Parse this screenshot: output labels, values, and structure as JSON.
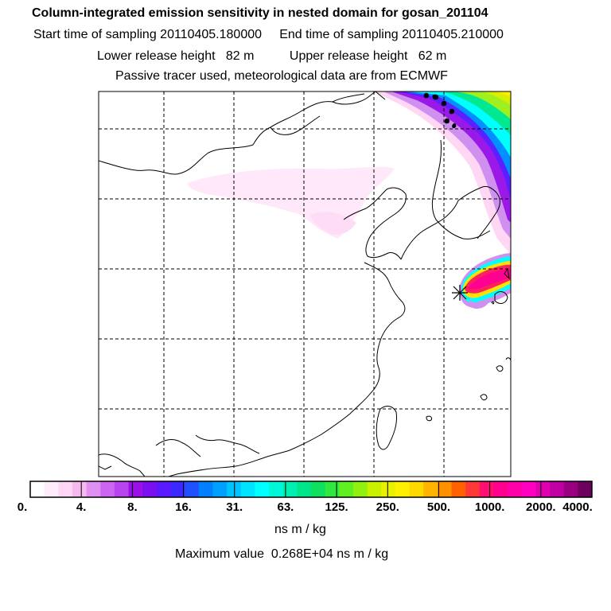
{
  "header": {
    "title": "Column-integrated emission sensitivity in nested domain for gosan_201104",
    "sampling_line": "Start time of sampling 20110405.180000     End time of sampling 20110405.210000",
    "height_line": "Lower release height   82 m          Upper release height   62 m",
    "tracer_line": "Passive tracer used, meteorological data are from ECMWF"
  },
  "map": {
    "release_marker": "asterisk-marker",
    "plume_colors": [
      "#ffd6f4",
      "#d090f0",
      "#9000e0",
      "#5020ff",
      "#0080ff",
      "#00ffff",
      "#00e890",
      "#b0f020",
      "#ffe000",
      "#ff4040",
      "#ff0090"
    ]
  },
  "colorbar": {
    "colors": [
      "#ffffff",
      "#ffecfb",
      "#ffd6f4",
      "#f6b8ee",
      "#e090f0",
      "#cc66f0",
      "#b844f0",
      "#9a10e8",
      "#7a10f0",
      "#5a18ff",
      "#3a28ff",
      "#2050ff",
      "#0080ff",
      "#00a0ff",
      "#00c4ff",
      "#00e4ff",
      "#00ffff",
      "#00f6d8",
      "#00eeb0",
      "#00e48a",
      "#10e060",
      "#30e840",
      "#60f020",
      "#90f010",
      "#c8f000",
      "#e8f000",
      "#fff000",
      "#ffd800",
      "#ffb400",
      "#ff9000",
      "#ff6000",
      "#ff3838",
      "#ff1070",
      "#ff0090",
      "#ff00a8",
      "#ff00c0",
      "#e000b0",
      "#c000a0",
      "#980080",
      "#700060"
    ],
    "tick_labels": [
      "0.",
      "4.",
      "8.",
      "16.",
      "31.",
      "63.",
      "125.",
      "250.",
      "500.",
      "1000.",
      "2000.",
      "4000."
    ],
    "units": "ns m / kg"
  },
  "footer": {
    "max_value": "Maximum value  0.268E+04 ns m / kg"
  }
}
